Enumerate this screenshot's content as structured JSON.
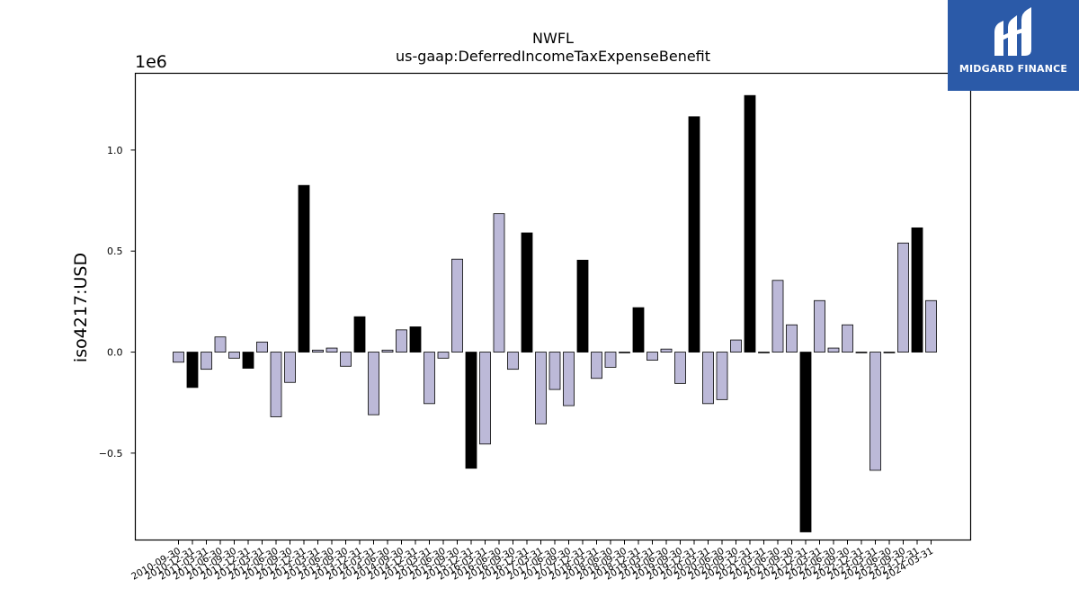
{
  "chart_data": {
    "type": "bar",
    "title": "NWFL",
    "subtitle": "us-gaap:DeferredIncomeTaxExpenseBenefit",
    "ylabel": "iso4217:USD",
    "xlabel": "",
    "offset_label": "1e6",
    "ylim": [
      -0.93,
      1.38
    ],
    "yticks": [
      -0.5,
      0.0,
      0.5,
      1.0
    ],
    "ytick_labels": [
      "−0.5",
      "0.0",
      "0.5",
      "1.0"
    ],
    "grid": false,
    "colors": {
      "quarterly": "#bcb9d8",
      "annual": "#000000",
      "edge": "#000000"
    },
    "categories": [
      "2010-09-30",
      "2010-12-31",
      "2011-03-31",
      "2011-06-30",
      "2011-09-30",
      "2011-12-31",
      "2012-03-31",
      "2012-06-30",
      "2012-09-30",
      "2012-12-31",
      "2013-03-31",
      "2013-06-30",
      "2013-09-30",
      "2013-12-31",
      "2014-03-31",
      "2014-06-30",
      "2014-09-30",
      "2014-12-31",
      "2015-03-31",
      "2015-06-30",
      "2015-09-30",
      "2015-12-31",
      "2016-03-31",
      "2016-06-30",
      "2016-09-30",
      "2016-12-31",
      "2017-03-31",
      "2017-06-30",
      "2017-09-30",
      "2017-12-31",
      "2018-03-31",
      "2018-06-30",
      "2018-09-30",
      "2018-12-31",
      "2019-03-31",
      "2019-06-30",
      "2019-09-30",
      "2019-12-31",
      "2020-03-31",
      "2020-06-30",
      "2020-09-30",
      "2020-12-31",
      "2021-03-31",
      "2021-06-30",
      "2021-09-30",
      "2021-12-31",
      "2022-03-31",
      "2022-06-30",
      "2022-09-30",
      "2022-12-31",
      "2023-03-31",
      "2023-06-30",
      "2023-09-30",
      "2023-12-31",
      "2024-03-31"
    ],
    "tick_labels": [
      "2010-09-30",
      "2010-12-31",
      "2011-03-31",
      "2011-06-30",
      "2011-09-30",
      "2011-12-31",
      "2012-03-31",
      "2012-06-30",
      "2012-09-30",
      "2012-12-31",
      "2013-03-31",
      "2013-06-30",
      "2013-09-30",
      "2013-12-31",
      "2014-03-31",
      "2014-06-30",
      "2014-09-30",
      "2014-12-31",
      "2015-03-31",
      "2015-06-30",
      "2015-09-30",
      "2015-12-31",
      "2016-03-31",
      "2016-06-30",
      "2016-09-30",
      "2016-12-31",
      "2017-03-31",
      "2017-06-30",
      "2017-09-30",
      "2017-12-31",
      "2018-03-31",
      "2018-06-30",
      "2018-09-30",
      "2018-12-31",
      "2019-03-31",
      "2019-06-30",
      "2019-09-30",
      "2019-12-31",
      "2020-03-31",
      "2020-06-30",
      "2020-09-30",
      "2020-12-31",
      "2021-03-31",
      "2021-06-30",
      "2021-09-30",
      "2021-12-31",
      "2022-03-31",
      "2022-06-30",
      "2022-09-30",
      "2022-12-31",
      "2023-03-31",
      "2023-06-30",
      "2023-09-30",
      "2023-12-31",
      "2024-03-31"
    ],
    "values": [
      -0.05,
      -0.175,
      -0.085,
      0.075,
      -0.03,
      -0.08,
      0.05,
      -0.32,
      -0.15,
      0.825,
      0.01,
      0.02,
      -0.07,
      0.175,
      -0.31,
      0.01,
      0.11,
      0.125,
      -0.255,
      -0.03,
      0.46,
      -0.575,
      -0.455,
      0.685,
      -0.085,
      0.59,
      -0.355,
      -0.185,
      -0.265,
      0.455,
      -0.13,
      -0.075,
      0.0,
      0.22,
      -0.04,
      0.015,
      -0.155,
      1.165,
      -0.255,
      -0.235,
      0.06,
      1.27,
      0.0,
      0.355,
      0.135,
      -0.89,
      0.255,
      0.02,
      0.135,
      0.0,
      -0.585,
      0.0,
      0.54,
      0.615,
      0.255
    ],
    "is_annual": [
      false,
      true,
      false,
      false,
      false,
      true,
      false,
      false,
      false,
      true,
      false,
      false,
      false,
      true,
      false,
      false,
      false,
      true,
      false,
      false,
      false,
      true,
      false,
      false,
      false,
      true,
      false,
      false,
      false,
      true,
      false,
      false,
      false,
      true,
      false,
      false,
      false,
      true,
      false,
      false,
      false,
      true,
      false,
      false,
      false,
      true,
      false,
      false,
      false,
      true,
      false,
      false,
      false,
      true,
      false
    ]
  },
  "logo": {
    "text": "MIDGARD FINANCE",
    "icon": "midgard-logo-icon"
  }
}
